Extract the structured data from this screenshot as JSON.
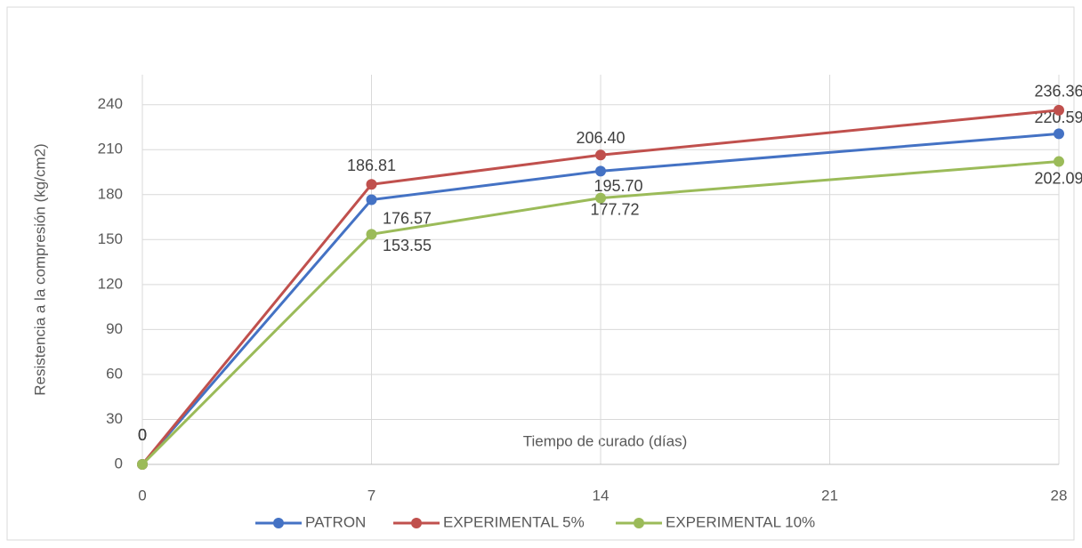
{
  "chart_data": {
    "type": "line",
    "x_label": "Tiempo de curado (días)",
    "y_label": "Resistencia a la compresión (kg/cm2)",
    "x": [
      0,
      7,
      14,
      28
    ],
    "xlim": [
      0,
      28
    ],
    "xticks": [
      0,
      7,
      14,
      21,
      28
    ],
    "ylim": [
      0,
      260
    ],
    "yticks": [
      0,
      30,
      60,
      90,
      120,
      150,
      180,
      210,
      240
    ],
    "grid": true,
    "legend": "bottom",
    "series": [
      {
        "name": "PATRON",
        "color": "#4472c4",
        "values": [
          0,
          176.57,
          195.7,
          220.59
        ],
        "value_labels": [
          "0",
          "176.57",
          "195.70",
          "220.59"
        ]
      },
      {
        "name": "EXPERIMENTAL 5%",
        "color": "#c0504d",
        "values": [
          0,
          186.81,
          206.4,
          236.36
        ],
        "value_labels": [
          "0",
          "186.81",
          "206.40",
          "236.36"
        ]
      },
      {
        "name": "EXPERIMENTAL 10%",
        "color": "#9bbb59",
        "values": [
          0,
          153.55,
          177.72,
          202.09
        ],
        "value_labels": [
          "0",
          "153.55",
          "177.72",
          "202.09"
        ]
      }
    ]
  }
}
